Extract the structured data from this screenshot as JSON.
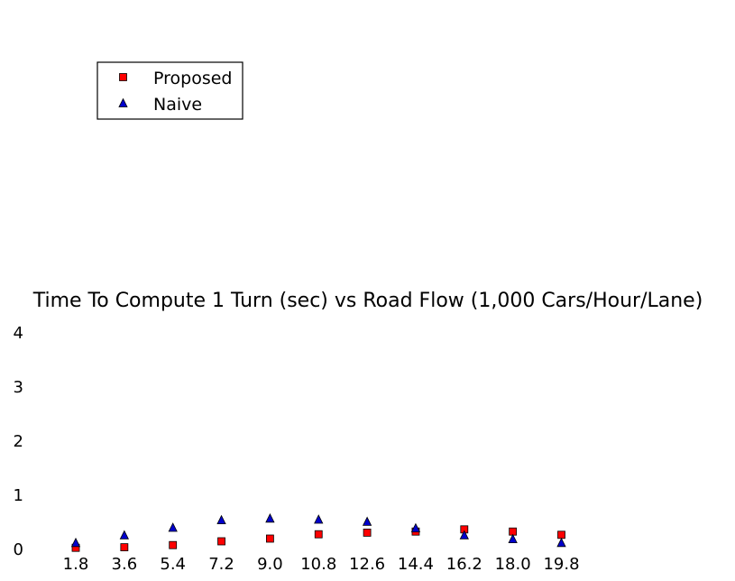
{
  "chart_data": {
    "type": "scatter",
    "title": "Time To Compute 1 Turn (sec) vs Road Flow (1,000 Cars/Hour/Lane)",
    "xlabel": "",
    "ylabel": "",
    "categories": [
      "1.8",
      "3.6",
      "5.4",
      "7.2",
      "9.0",
      "10.8",
      "12.6",
      "14.4",
      "16.2",
      "18.0",
      "19.8"
    ],
    "ylim": [
      0,
      4
    ],
    "yticks": [
      "0",
      "1",
      "2",
      "3",
      "4"
    ],
    "grid": false,
    "legend_position": "top-left",
    "series": [
      {
        "name": "Proposed",
        "marker": "square",
        "color": "#ff0000",
        "values": [
          0.03,
          0.04,
          0.08,
          0.15,
          0.2,
          0.28,
          0.31,
          0.33,
          0.37,
          0.33,
          0.27
        ]
      },
      {
        "name": "Naive",
        "marker": "triangle",
        "color": "#0000cc",
        "values": [
          0.12,
          0.26,
          0.4,
          0.54,
          0.57,
          0.55,
          0.51,
          0.39,
          0.26,
          0.19,
          0.12
        ]
      }
    ]
  }
}
